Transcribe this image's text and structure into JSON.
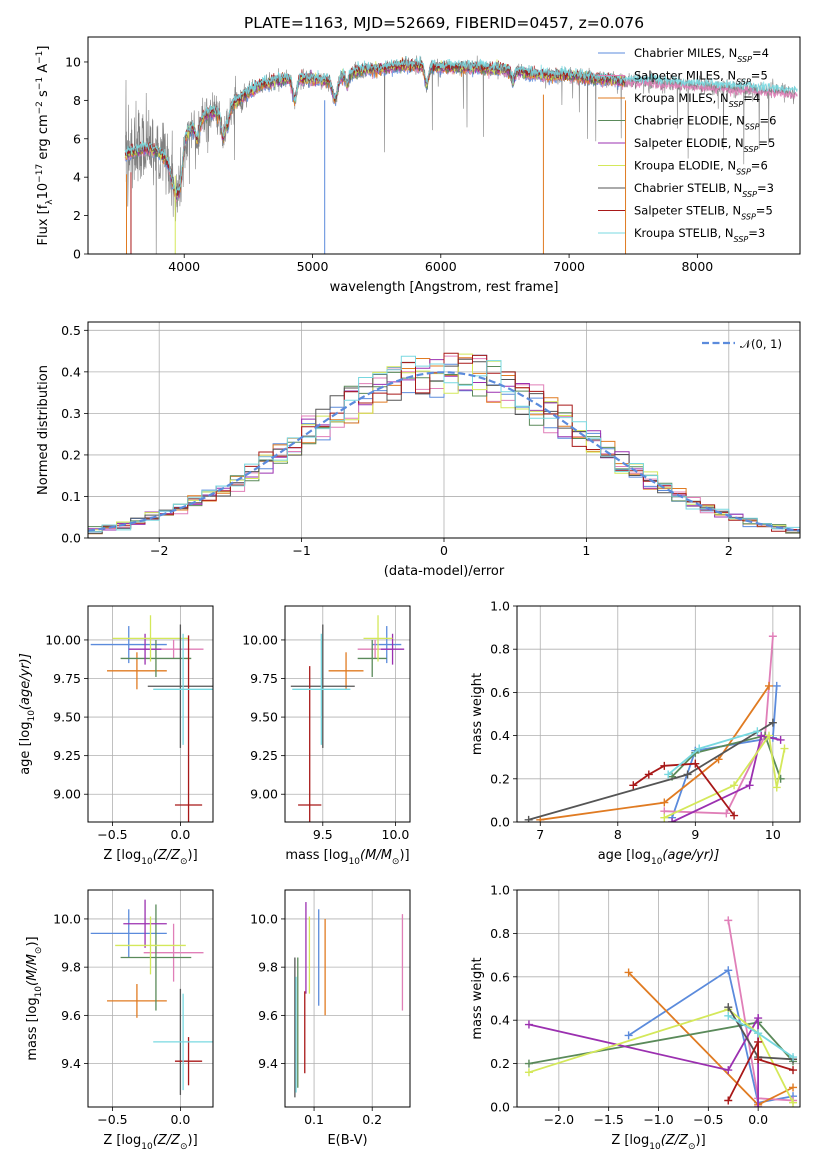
{
  "palette": {
    "Chabrier MILES": "#5b8bdc",
    "Salpeter MILES": "#e07fb8",
    "Kroupa MILES": "#e07b22",
    "Chabrier ELODIE": "#5a8a5a",
    "Salpeter ELODIE": "#9b30b0",
    "Kroupa ELODIE": "#d4e85a",
    "Chabrier STELIB": "#555555",
    "Salpeter STELIB": "#a81818",
    "Kroupa STELIB": "#78d8e0"
  },
  "chart_data": [
    {
      "id": "spectrum",
      "type": "line",
      "title": "PLATE=1163, MJD=52669, FIBERID=0457, z=0.076",
      "xlabel": "wavelength [Angstrom, rest frame]",
      "ylabel_main": "Flux [f",
      "ylabel_sub": "λ",
      "ylabel_rest": "10",
      "ylabel_sup1": "−17",
      "ylabel_mid": " erg cm",
      "ylabel_sup2": "−2",
      "ylabel_mid2": " s",
      "ylabel_sup3": "−1",
      "ylabel_end": " A",
      "ylabel_sup4": "−1",
      "ylabel_close": "]",
      "xlim": [
        3250,
        8800
      ],
      "ylim": [
        0,
        11.3
      ],
      "xticks": [
        "4000",
        "5000",
        "6000",
        "7000",
        "8000"
      ],
      "xtick_values": [
        4000,
        5000,
        6000,
        7000,
        8000
      ],
      "yticks": [
        "0",
        "2",
        "4",
        "6",
        "8",
        "10"
      ],
      "ytick_values": [
        0,
        2,
        4,
        6,
        8,
        10
      ],
      "grid": false,
      "legend_placement": "right",
      "legend": [
        {
          "name": "Chabrier MILES",
          "nssp": "4"
        },
        {
          "name": "Salpeter MILES",
          "nssp": "5"
        },
        {
          "name": "Kroupa MILES",
          "nssp": "4"
        },
        {
          "name": "Chabrier ELODIE",
          "nssp": "6"
        },
        {
          "name": "Salpeter ELODIE",
          "nssp": "5"
        },
        {
          "name": "Kroupa ELODIE",
          "nssp": "6"
        },
        {
          "name": "Chabrier STELIB",
          "nssp": "3"
        },
        {
          "name": "Salpeter STELIB",
          "nssp": "5"
        },
        {
          "name": "Kroupa STELIB",
          "nssp": "3"
        }
      ],
      "legend_suffix": ", N",
      "legend_sub": "SSP",
      "legend_eq": "=",
      "continuum": {
        "x": [
          3500,
          3600,
          3700,
          3800,
          3900,
          4000,
          4100,
          4200,
          4300,
          4400,
          4500,
          4600,
          4700,
          4800,
          4900,
          5000,
          5100,
          5200,
          5300,
          5400,
          5500,
          5600,
          5700,
          5800,
          5900,
          6000,
          6100,
          6200,
          6300,
          6400,
          6500,
          6600,
          6700,
          6800,
          6900,
          7000,
          7100,
          7200,
          7300,
          7400,
          7500,
          7600,
          7700,
          7800,
          7900,
          8000,
          8100,
          8200,
          8300,
          8400,
          8500,
          8600,
          8700,
          8750
        ],
        "y": [
          5.0,
          5.3,
          5.5,
          5.3,
          4.6,
          6.2,
          6.8,
          7.4,
          7.3,
          7.9,
          8.4,
          8.8,
          9.0,
          9.1,
          9.1,
          9.1,
          9.0,
          9.2,
          9.4,
          9.6,
          9.6,
          9.7,
          9.8,
          9.8,
          9.8,
          9.7,
          9.7,
          9.7,
          9.7,
          9.6,
          9.6,
          9.5,
          9.4,
          9.3,
          9.3,
          9.3,
          9.2,
          9.1,
          9.1,
          9.0,
          9.0,
          9.0,
          8.9,
          8.9,
          8.8,
          8.8,
          8.7,
          8.7,
          8.6,
          8.6,
          8.5,
          8.5,
          8.4,
          8.4
        ]
      },
      "data_start": 3540,
      "noise_end": 4500,
      "model_end": 7440,
      "drops_x": [
        3550,
        3585,
        3930,
        5095,
        6800,
        7440
      ]
    },
    {
      "id": "residuals",
      "type": "bar",
      "xlabel": "(data-model)/error",
      "ylabel": "Normed distribution",
      "xlim": [
        -2.5,
        2.5
      ],
      "ylim": [
        0,
        0.52
      ],
      "xticks": [
        "−2",
        "−1",
        "0",
        "1",
        "2"
      ],
      "xtick_values": [
        -2,
        -1,
        0,
        1,
        2
      ],
      "yticks": [
        "0.0",
        "0.1",
        "0.2",
        "0.3",
        "0.4",
        "0.5"
      ],
      "ytick_values": [
        0,
        0.1,
        0.2,
        0.3,
        0.4,
        0.5
      ],
      "grid": true,
      "legend_placement": "top-right",
      "legend_label": "𝒩(0, 1)",
      "bin_width": 0.1,
      "bins_from": -2.5,
      "bins_to": 2.5,
      "gaussian": {
        "mean": 0,
        "sigma": 1
      }
    },
    {
      "id": "age-vs-Z",
      "type": "scatter",
      "xlabel": "Z [log",
      "xlabel_sub": "10",
      "xlabel_rest": "(Z/Z",
      "xlabel_sun": "⊙",
      "xlabel_close": ")]",
      "ylabel": "age  [log",
      "ylabel_sub": "10",
      "ylabel_rest": "(age/yr)]",
      "xlim": [
        -0.68,
        0.24
      ],
      "ylim": [
        8.82,
        10.22
      ],
      "xticks": [
        "−0.5",
        "0.0"
      ],
      "xtick_values": [
        -0.5,
        0.0
      ],
      "yticks": [
        "9.00",
        "9.25",
        "9.50",
        "9.75",
        "10.00"
      ],
      "ytick_values": [
        9.0,
        9.25,
        9.5,
        9.75,
        10.0
      ],
      "grid": true,
      "points": [
        {
          "model": "Chabrier MILES",
          "x": -0.38,
          "y": 9.97,
          "xerr": 0.28,
          "yerr": 0.12
        },
        {
          "model": "Salpeter MILES",
          "x": -0.05,
          "y": 9.94,
          "xerr": 0.22,
          "yerr": 0.06
        },
        {
          "model": "Kroupa MILES",
          "x": -0.32,
          "y": 9.8,
          "xerr": 0.22,
          "yerr": 0.12
        },
        {
          "model": "Chabrier ELODIE",
          "x": -0.18,
          "y": 9.88,
          "xerr": 0.26,
          "yerr": 0.12
        },
        {
          "model": "Salpeter ELODIE",
          "x": -0.26,
          "y": 9.94,
          "xerr": 0.12,
          "yerr": 0.1
        },
        {
          "model": "Kroupa ELODIE",
          "x": -0.22,
          "y": 10.01,
          "xerr": 0.28,
          "yerr": 0.15
        },
        {
          "model": "Chabrier STELIB",
          "x": 0.0,
          "y": 9.7,
          "xerr": 0.24,
          "yerr": 0.4
        },
        {
          "model": "Salpeter STELIB",
          "x": 0.06,
          "y": 8.93,
          "xerr": 0.1,
          "yerr": 1.1
        },
        {
          "model": "Kroupa STELIB",
          "x": 0.02,
          "y": 9.68,
          "xerr": 0.22,
          "yerr": 0.36
        }
      ]
    },
    {
      "id": "age-vs-mass",
      "type": "scatter",
      "xlabel": "mass [log",
      "xlabel_sub": "10",
      "xlabel_rest": "(M/M",
      "xlabel_sun": "⊙",
      "xlabel_close": ")]",
      "ylabel": "",
      "xlim": [
        9.24,
        10.1
      ],
      "ylim": [
        8.82,
        10.22
      ],
      "xticks": [
        "9.5",
        "10.0"
      ],
      "xtick_values": [
        9.5,
        10.0
      ],
      "yticks": [
        "9.00",
        "9.25",
        "9.50",
        "9.75",
        "10.00"
      ],
      "ytick_values": [
        9.0,
        9.25,
        9.5,
        9.75,
        10.0
      ],
      "grid": true,
      "points": [
        {
          "model": "Chabrier MILES",
          "x": 9.94,
          "y": 9.97,
          "xerr": 0.1,
          "yerr": 0.12
        },
        {
          "model": "Salpeter MILES",
          "x": 9.86,
          "y": 9.94,
          "xerr": 0.12,
          "yerr": 0.06
        },
        {
          "model": "Kroupa MILES",
          "x": 9.66,
          "y": 9.8,
          "xerr": 0.12,
          "yerr": 0.12
        },
        {
          "model": "Chabrier ELODIE",
          "x": 9.84,
          "y": 9.88,
          "xerr": 0.1,
          "yerr": 0.12
        },
        {
          "model": "Salpeter ELODIE",
          "x": 9.98,
          "y": 9.94,
          "xerr": 0.08,
          "yerr": 0.1
        },
        {
          "model": "Kroupa ELODIE",
          "x": 9.88,
          "y": 10.01,
          "xerr": 0.1,
          "yerr": 0.15
        },
        {
          "model": "Chabrier STELIB",
          "x": 9.5,
          "y": 9.7,
          "xerr": 0.22,
          "yerr": 0.4
        },
        {
          "model": "Salpeter STELIB",
          "x": 9.41,
          "y": 8.93,
          "xerr": 0.08,
          "yerr": 0.9
        },
        {
          "model": "Kroupa STELIB",
          "x": 9.49,
          "y": 9.68,
          "xerr": 0.2,
          "yerr": 0.36
        }
      ]
    },
    {
      "id": "mass-weight-vs-age",
      "type": "line",
      "xlabel": "age  [log",
      "xlabel_sub": "10",
      "xlabel_rest": "(age/yr)]",
      "ylabel": "mass weight",
      "xlim": [
        6.7,
        10.35
      ],
      "ylim": [
        0,
        1.0
      ],
      "xticks": [
        "7",
        "8",
        "9",
        "10"
      ],
      "xtick_values": [
        7,
        8,
        9,
        10
      ],
      "yticks": [
        "0.0",
        "0.2",
        "0.4",
        "0.6",
        "0.8",
        "1.0"
      ],
      "ytick_values": [
        0,
        0.2,
        0.4,
        0.6,
        0.8,
        1.0
      ],
      "grid": true,
      "series": [
        {
          "model": "Chabrier MILES",
          "x": [
            8.7,
            9.0,
            10.0,
            10.05
          ],
          "y": [
            0.02,
            0.33,
            0.39,
            0.63
          ]
        },
        {
          "model": "Salpeter MILES",
          "x": [
            8.6,
            9.4,
            9.9,
            10.0
          ],
          "y": [
            0.05,
            0.04,
            0.4,
            0.86
          ]
        },
        {
          "model": "Kroupa MILES",
          "x": [
            7.0,
            8.6,
            9.3,
            9.95
          ],
          "y": [
            0.01,
            0.09,
            0.29,
            0.63
          ]
        },
        {
          "model": "Chabrier ELODIE",
          "x": [
            8.7,
            9.0,
            9.9,
            10.1
          ],
          "y": [
            0.21,
            0.32,
            0.4,
            0.2
          ]
        },
        {
          "model": "Salpeter ELODIE",
          "x": [
            8.7,
            9.7,
            9.85,
            10.1
          ],
          "y": [
            0.0,
            0.17,
            0.4,
            0.38
          ]
        },
        {
          "model": "Kroupa ELODIE",
          "x": [
            8.6,
            9.5,
            9.95,
            10.05,
            10.15
          ],
          "y": [
            0.02,
            0.17,
            0.4,
            0.16,
            0.34
          ]
        },
        {
          "model": "Chabrier STELIB",
          "x": [
            6.85,
            8.9,
            10.0
          ],
          "y": [
            0.01,
            0.22,
            0.46
          ]
        },
        {
          "model": "Salpeter STELIB",
          "x": [
            8.2,
            8.4,
            8.6,
            9.0,
            9.5
          ],
          "y": [
            0.17,
            0.22,
            0.26,
            0.27,
            0.03
          ]
        },
        {
          "model": "Kroupa STELIB",
          "x": [
            8.65,
            9.05,
            9.8
          ],
          "y": [
            0.22,
            0.34,
            0.42
          ]
        }
      ]
    },
    {
      "id": "mass-vs-Z",
      "type": "scatter",
      "xlabel": "Z [log",
      "xlabel_sub": "10",
      "xlabel_rest": "(Z/Z",
      "xlabel_sun": "⊙",
      "xlabel_close": ")]",
      "ylabel": "mass [log",
      "ylabel_sub": "10",
      "ylabel_rest": "(M/M",
      "ylabel_sun": "⊙",
      "ylabel_close": ")]",
      "xlim": [
        -0.68,
        0.24
      ],
      "ylim": [
        9.22,
        10.12
      ],
      "xticks": [
        "−0.5",
        "0.0"
      ],
      "xtick_values": [
        -0.5,
        0.0
      ],
      "yticks": [
        "9.4",
        "9.6",
        "9.8",
        "10.0"
      ],
      "ytick_values": [
        9.4,
        9.6,
        9.8,
        10.0
      ],
      "grid": true,
      "points": [
        {
          "model": "Chabrier MILES",
          "x": -0.38,
          "y": 9.94,
          "xerr": 0.28,
          "yerr": 0.1
        },
        {
          "model": "Salpeter MILES",
          "x": -0.05,
          "y": 9.86,
          "xerr": 0.22,
          "yerr": 0.12
        },
        {
          "model": "Kroupa MILES",
          "x": -0.32,
          "y": 9.66,
          "xerr": 0.22,
          "yerr": 0.07
        },
        {
          "model": "Chabrier ELODIE",
          "x": -0.18,
          "y": 9.84,
          "xerr": 0.26,
          "yerr": 0.22
        },
        {
          "model": "Salpeter ELODIE",
          "x": -0.26,
          "y": 9.98,
          "xerr": 0.16,
          "yerr": 0.1
        },
        {
          "model": "Kroupa ELODIE",
          "x": -0.22,
          "y": 9.89,
          "xerr": 0.26,
          "yerr": 0.12
        },
        {
          "model": "Chabrier STELIB",
          "x": 0.0,
          "y": 9.49,
          "xerr": 0.0,
          "yerr": 0.22
        },
        {
          "model": "Salpeter STELIB",
          "x": 0.06,
          "y": 9.41,
          "xerr": 0.1,
          "yerr": 0.1
        },
        {
          "model": "Kroupa STELIB",
          "x": 0.02,
          "y": 9.49,
          "xerr": 0.22,
          "yerr": 0.2
        }
      ]
    },
    {
      "id": "mass-vs-ebv",
      "type": "scatter",
      "xlabel": "E(B-V)",
      "ylabel": "",
      "xlim": [
        0.05,
        0.265
      ],
      "ylim": [
        9.22,
        10.12
      ],
      "xticks": [
        "0.1",
        "0.2"
      ],
      "xtick_values": [
        0.1,
        0.2
      ],
      "yticks": [
        "9.4",
        "9.6",
        "9.8",
        "10.0"
      ],
      "ytick_values": [
        9.4,
        9.6,
        9.8,
        10.0
      ],
      "grid": true,
      "points": [
        {
          "model": "Chabrier MILES",
          "x": 0.108,
          "y": 9.84,
          "xerr": 0,
          "yerr": 0.2
        },
        {
          "model": "Salpeter MILES",
          "x": 0.252,
          "y": 9.82,
          "xerr": 0,
          "yerr": 0.2
        },
        {
          "model": "Kroupa MILES",
          "x": 0.119,
          "y": 9.8,
          "xerr": 0,
          "yerr": 0.2
        },
        {
          "model": "Chabrier ELODIE",
          "x": 0.072,
          "y": 9.57,
          "xerr": 0,
          "yerr": 0.27
        },
        {
          "model": "Salpeter ELODIE",
          "x": 0.086,
          "y": 9.88,
          "xerr": 0,
          "yerr": 0.19
        },
        {
          "model": "Kroupa ELODIE",
          "x": 0.092,
          "y": 9.85,
          "xerr": 0,
          "yerr": 0.16
        },
        {
          "model": "Chabrier STELIB",
          "x": 0.067,
          "y": 9.55,
          "xerr": 0,
          "yerr": 0.29
        },
        {
          "model": "Salpeter STELIB",
          "x": 0.084,
          "y": 9.53,
          "xerr": 0,
          "yerr": 0.17
        },
        {
          "model": "Kroupa STELIB",
          "x": 0.069,
          "y": 9.52,
          "xerr": 0,
          "yerr": 0.24
        }
      ]
    },
    {
      "id": "mass-weight-vs-Z",
      "type": "line",
      "xlabel": "Z [log",
      "xlabel_sub": "10",
      "xlabel_rest": "(Z/Z",
      "xlabel_sun": "⊙",
      "xlabel_close": ")]",
      "ylabel": "mass weight",
      "xlim": [
        -2.42,
        0.42
      ],
      "ylim": [
        0,
        1.0
      ],
      "xticks": [
        "−2.0",
        "−1.5",
        "−1.0",
        "−0.5",
        "0.0"
      ],
      "xtick_values": [
        -2.0,
        -1.5,
        -1.0,
        -0.5,
        0.0
      ],
      "yticks": [
        "0.0",
        "0.2",
        "0.4",
        "0.6",
        "0.8",
        "1.0"
      ],
      "ytick_values": [
        0,
        0.2,
        0.4,
        0.6,
        0.8,
        1.0
      ],
      "grid": true,
      "series": [
        {
          "model": "Chabrier MILES",
          "x": [
            -1.3,
            -0.3,
            0.0,
            0.35
          ],
          "y": [
            0.33,
            0.63,
            0.02,
            0.05
          ]
        },
        {
          "model": "Salpeter MILES",
          "x": [
            -0.3,
            0.0,
            0.35
          ],
          "y": [
            0.86,
            0.04,
            0.03
          ]
        },
        {
          "model": "Kroupa MILES",
          "x": [
            -1.3,
            0.0,
            0.35
          ],
          "y": [
            0.62,
            0.01,
            0.09
          ]
        },
        {
          "model": "Chabrier ELODIE",
          "x": [
            -2.3,
            0.0,
            0.35
          ],
          "y": [
            0.2,
            0.39,
            0.21
          ]
        },
        {
          "model": "Salpeter ELODIE",
          "x": [
            -2.3,
            -0.3,
            0.0,
            0.0
          ],
          "y": [
            0.38,
            0.17,
            0.41,
            0.0
          ]
        },
        {
          "model": "Kroupa ELODIE",
          "x": [
            -2.3,
            -0.3,
            0.0,
            0.35
          ],
          "y": [
            0.16,
            0.45,
            0.34,
            0.02
          ]
        },
        {
          "model": "Chabrier STELIB",
          "x": [
            -0.3,
            0.0,
            0.35
          ],
          "y": [
            0.46,
            0.23,
            0.22
          ]
        },
        {
          "model": "Salpeter STELIB",
          "x": [
            -0.3,
            0.0,
            0.0,
            0.35
          ],
          "y": [
            0.03,
            0.3,
            0.22,
            0.17
          ]
        },
        {
          "model": "Kroupa STELIB",
          "x": [
            -0.3,
            0.0,
            0.35
          ],
          "y": [
            0.42,
            0.34,
            0.23
          ]
        }
      ]
    }
  ]
}
